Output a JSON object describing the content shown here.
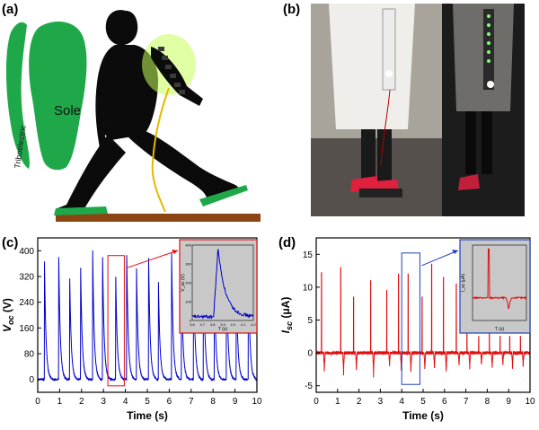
{
  "panels": {
    "a": {
      "label": "(a)",
      "sole_text": "Sole",
      "tribo_text": "Triboelectric"
    },
    "b": {
      "label": "(b)"
    },
    "c": {
      "label": "(c)"
    },
    "d": {
      "label": "(d)"
    }
  },
  "colors": {
    "green": "#1fa84a",
    "blue": "#0000cc",
    "red": "#e01010",
    "inset_bg": "#c8c8c8",
    "floor": "#8b4513"
  },
  "chart_data": [
    {
      "id": "c",
      "type": "line",
      "xlabel": "Time (s)",
      "ylabel": "V",
      "ylabel_sub": "oc",
      "ylabel_unit": " (V)",
      "xlim": [
        0,
        10
      ],
      "ylim": [
        -40,
        440
      ],
      "xticks": [
        0,
        1,
        2,
        3,
        4,
        5,
        6,
        7,
        8,
        9,
        10
      ],
      "yticks": [
        0,
        80,
        160,
        240,
        320,
        400
      ],
      "series": [
        {
          "color": "#0000cc",
          "baseline": 0,
          "peaks": [
            {
              "x": 0.3,
              "y": 365
            },
            {
              "x": 0.95,
              "y": 390
            },
            {
              "x": 1.45,
              "y": 325
            },
            {
              "x": 1.95,
              "y": 355
            },
            {
              "x": 2.5,
              "y": 400
            },
            {
              "x": 2.95,
              "y": 395
            },
            {
              "x": 3.55,
              "y": 330
            },
            {
              "x": 4.05,
              "y": 400
            },
            {
              "x": 4.5,
              "y": 345
            },
            {
              "x": 5.05,
              "y": 390
            },
            {
              "x": 5.5,
              "y": 300
            },
            {
              "x": 6.1,
              "y": 395
            },
            {
              "x": 6.55,
              "y": 325
            },
            {
              "x": 7.1,
              "y": 365
            },
            {
              "x": 7.55,
              "y": 395
            },
            {
              "x": 8.05,
              "y": 325
            },
            {
              "x": 8.6,
              "y": 390
            },
            {
              "x": 9.05,
              "y": 325
            },
            {
              "x": 9.6,
              "y": 370
            }
          ]
        }
      ],
      "highlight_box": {
        "x0": 3.2,
        "x1": 3.95,
        "y0": -20,
        "y1": 385
      },
      "inset": {
        "xlabel": "T (s)",
        "ylabel": "V_oc (V)",
        "xticks": [
          "3.6",
          "3.7",
          "3.8",
          "3.9",
          "4.0",
          "4.1",
          "4.2"
        ],
        "yticks": [
          "0",
          "100",
          "200",
          "300",
          "400"
        ]
      }
    },
    {
      "id": "d",
      "type": "line",
      "xlabel": "Time (s)",
      "ylabel": "I",
      "ylabel_sub": "sc",
      "ylabel_unit": " (μA)",
      "xlim": [
        0,
        10
      ],
      "ylim": [
        -6,
        17.5
      ],
      "xticks": [
        0,
        1,
        2,
        3,
        4,
        5,
        6,
        7,
        8,
        9,
        10
      ],
      "yticks": [
        -5,
        0,
        5,
        10,
        15
      ],
      "series": [
        {
          "color": "#e01010",
          "baseline": 0,
          "peaks": [
            {
              "x": 0.25,
              "y": 12.2,
              "neg": -3.0
            },
            {
              "x": 1.15,
              "y": 13.0,
              "neg": -3.2
            },
            {
              "x": 1.75,
              "y": 8.5,
              "neg": -2.5
            },
            {
              "x": 2.55,
              "y": 11.0,
              "neg": -3.5
            },
            {
              "x": 3.3,
              "y": 9.5,
              "neg": -2.0
            },
            {
              "x": 3.85,
              "y": 12.0,
              "neg": -2.8
            },
            {
              "x": 4.3,
              "y": 12.0,
              "neg": -3.0
            },
            {
              "x": 4.95,
              "y": 8.5,
              "neg": -2.5
            },
            {
              "x": 5.4,
              "y": 13.5,
              "neg": -2.5
            },
            {
              "x": 5.95,
              "y": 11.5,
              "neg": -3.0
            },
            {
              "x": 6.55,
              "y": 10.5,
              "neg": -2.0
            },
            {
              "x": 7.05,
              "y": 3.0,
              "neg": -2.5
            },
            {
              "x": 7.6,
              "y": 2.5,
              "neg": -2.0
            },
            {
              "x": 8.1,
              "y": 3.0,
              "neg": -2.5
            },
            {
              "x": 8.6,
              "y": 2.5,
              "neg": -2.0
            },
            {
              "x": 9.05,
              "y": 2.5,
              "neg": -2.2
            },
            {
              "x": 9.55,
              "y": 2.5,
              "neg": -2.0
            }
          ]
        }
      ],
      "highlight_box": {
        "x0": 4.0,
        "x1": 4.85,
        "y0": -4.8,
        "y1": 15.2
      },
      "inset": {
        "xlabel": "T (s)",
        "ylabel": "I_sc (μA)"
      }
    }
  ]
}
